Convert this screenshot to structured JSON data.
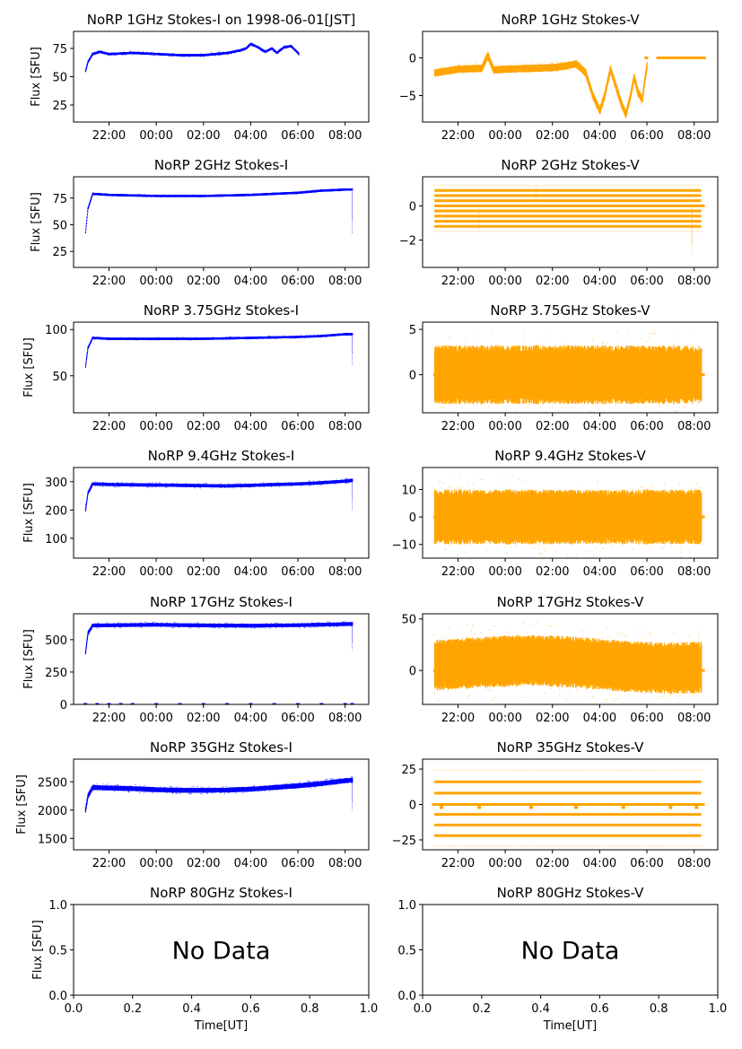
{
  "figure": {
    "title_prefix": "NoRP",
    "date_label": "on 1998-06-01[JST]",
    "time_axis_label": "Time[UT]",
    "flux_axis_label": "Flux [SFU]",
    "colors": {
      "stokes_i": "#0000ff",
      "stokes_v": "#ffa500"
    }
  },
  "chart_data": [
    {
      "type": "scatter",
      "panel": "1GHz-I",
      "title": "NoRP 1GHz Stokes-I on 1998-06-01[JST]",
      "ylabel": "Flux [SFU]",
      "xlabel": "",
      "x_range_hours": [
        20.5,
        33.0
      ],
      "ylim": [
        10,
        90
      ],
      "xticks": [
        "22:00",
        "00:00",
        "02:00",
        "04:00",
        "06:00",
        "08:00"
      ],
      "yticks": [
        {
          "v": 25,
          "label": "25"
        },
        {
          "v": 50,
          "label": "50"
        },
        {
          "v": 75,
          "label": "75"
        }
      ],
      "series": [
        {
          "name": "Stokes-I",
          "points": [
            [
              21.0,
              55
            ],
            [
              21.1,
              63
            ],
            [
              21.3,
              70
            ],
            [
              21.6,
              72
            ],
            [
              22,
              70
            ],
            [
              23,
              71
            ],
            [
              24,
              70
            ],
            [
              25,
              69
            ],
            [
              26,
              69
            ],
            [
              26.5,
              70
            ],
            [
              27,
              71
            ],
            [
              27.5,
              73
            ],
            [
              27.8,
              75
            ],
            [
              28,
              79
            ],
            [
              28.3,
              76
            ],
            [
              28.6,
              72
            ],
            [
              28.9,
              75
            ],
            [
              29.1,
              71
            ],
            [
              29.4,
              76
            ],
            [
              29.7,
              77
            ],
            [
              30.0,
              71
            ],
            [
              30.03,
              70
            ]
          ]
        }
      ],
      "spread": 2.0,
      "extras": []
    },
    {
      "type": "scatter",
      "panel": "1GHz-V",
      "title": "NoRP 1GHz Stokes-V",
      "ylabel": "",
      "xlabel": "",
      "x_range_hours": [
        20.5,
        33.0
      ],
      "ylim": [
        -8.5,
        3.5
      ],
      "xticks": [
        "22:00",
        "00:00",
        "02:00",
        "04:00",
        "06:00",
        "08:00"
      ],
      "yticks": [
        {
          "v": -5,
          "label": "−5"
        },
        {
          "v": 0,
          "label": "0"
        }
      ],
      "series": [
        {
          "name": "Stokes-V",
          "points": [
            [
              21.0,
              -2.0
            ],
            [
              22,
              -1.5
            ],
            [
              23,
              -1.4
            ],
            [
              23.25,
              0.3
            ],
            [
              23.5,
              -1.6
            ],
            [
              24,
              -1.5
            ],
            [
              25,
              -1.4
            ],
            [
              26,
              -1.3
            ],
            [
              26.5,
              -1.1
            ],
            [
              27,
              -0.8
            ],
            [
              27.4,
              -2.0
            ],
            [
              27.7,
              -5.0
            ],
            [
              28.0,
              -7.0
            ],
            [
              28.2,
              -5.0
            ],
            [
              28.45,
              -1.5
            ],
            [
              28.6,
              -3.0
            ],
            [
              28.9,
              -6.0
            ],
            [
              29.1,
              -7.5
            ],
            [
              29.3,
              -5.0
            ],
            [
              29.45,
              -2.5
            ],
            [
              29.6,
              -4.5
            ],
            [
              29.8,
              -5.5
            ],
            [
              29.9,
              -3.0
            ],
            [
              30.0,
              -1.0
            ]
          ]
        },
        {
          "name": "Stokes-V zero",
          "points": [
            [
              30.4,
              0
            ],
            [
              32.5,
              0
            ]
          ]
        }
      ],
      "spread": 1.0,
      "extras": []
    },
    {
      "type": "scatter",
      "panel": "2GHz-I",
      "title": "NoRP 2GHz Stokes-I",
      "ylabel": "Flux [SFU]",
      "xlabel": "",
      "x_range_hours": [
        20.5,
        33.0
      ],
      "ylim": [
        10,
        95
      ],
      "xticks": [
        "22:00",
        "00:00",
        "02:00",
        "04:00",
        "06:00",
        "08:00"
      ],
      "yticks": [
        {
          "v": 25,
          "label": "25"
        },
        {
          "v": 50,
          "label": "50"
        },
        {
          "v": 75,
          "label": "75"
        }
      ],
      "series": [
        {
          "name": "Stokes-I",
          "points": [
            [
              21.0,
              43
            ],
            [
              21.1,
              65
            ],
            [
              21.3,
              79
            ],
            [
              22,
              78
            ],
            [
              24,
              77
            ],
            [
              26,
              77
            ],
            [
              28,
              78
            ],
            [
              29,
              79
            ],
            [
              30,
              80
            ],
            [
              31,
              82
            ],
            [
              32,
              83
            ],
            [
              32.3,
              83
            ]
          ]
        }
      ],
      "spread": 1.5,
      "extras": [
        [
          32.3,
          42
        ],
        [
          32.3,
          55
        ]
      ]
    },
    {
      "type": "scatter",
      "panel": "2GHz-V",
      "title": "NoRP 2GHz Stokes-V",
      "ylabel": "",
      "xlabel": "",
      "x_range_hours": [
        20.5,
        33.0
      ],
      "ylim": [
        -3.6,
        1.7
      ],
      "xticks": [
        "22:00",
        "00:00",
        "02:00",
        "04:00",
        "06:00",
        "08:00"
      ],
      "yticks": [
        {
          "v": -2,
          "label": "−2"
        },
        {
          "v": 0,
          "label": "0"
        }
      ],
      "series": [
        {
          "name": "Stokes-V",
          "points": [
            [
              21.0,
              0
            ],
            [
              32.3,
              0
            ]
          ]
        }
      ],
      "bands": [
        -1.2,
        -0.9,
        -0.6,
        -0.3,
        0,
        0.3,
        0.6,
        0.9
      ],
      "spread": 0,
      "extras": [
        [
          31.9,
          -2.8
        ],
        [
          31.9,
          -2.2
        ],
        [
          22.9,
          -1.5
        ],
        [
          25.3,
          1.2
        ]
      ]
    },
    {
      "type": "scatter",
      "panel": "3.75GHz-I",
      "title": "NoRP 3.75GHz Stokes-I",
      "ylabel": "Flux [SFU]",
      "xlabel": "",
      "x_range_hours": [
        20.5,
        33.0
      ],
      "ylim": [
        10,
        108
      ],
      "xticks": [
        "22:00",
        "00:00",
        "02:00",
        "04:00",
        "06:00",
        "08:00"
      ],
      "yticks": [
        {
          "v": 50,
          "label": "50"
        },
        {
          "v": 100,
          "label": "100"
        }
      ],
      "series": [
        {
          "name": "Stokes-I",
          "points": [
            [
              21.0,
              60
            ],
            [
              21.1,
              80
            ],
            [
              21.3,
              91
            ],
            [
              22,
              90
            ],
            [
              24,
              90
            ],
            [
              26,
              90
            ],
            [
              28,
              91
            ],
            [
              30,
              92
            ],
            [
              31,
              93
            ],
            [
              32,
              95
            ],
            [
              32.3,
              95
            ]
          ]
        }
      ],
      "spread": 2.0,
      "extras": [
        [
          32.3,
          62
        ],
        [
          32.3,
          75
        ]
      ]
    },
    {
      "type": "scatter",
      "panel": "3.75GHz-V",
      "title": "NoRP 3.75GHz Stokes-V",
      "ylabel": "",
      "xlabel": "",
      "x_range_hours": [
        20.5,
        33.0
      ],
      "ylim": [
        -4.2,
        5.8
      ],
      "xticks": [
        "22:00",
        "00:00",
        "02:00",
        "04:00",
        "06:00",
        "08:00"
      ],
      "yticks": [
        {
          "v": 0,
          "label": "0"
        },
        {
          "v": 5,
          "label": "5"
        }
      ],
      "series": [
        {
          "name": "Stokes-V",
          "points": [
            [
              21.0,
              0
            ],
            [
              32.3,
              0
            ]
          ]
        }
      ],
      "spread": 6.5,
      "extras": []
    },
    {
      "type": "scatter",
      "panel": "9.4GHz-I",
      "title": "NoRP 9.4GHz Stokes-I",
      "ylabel": "Flux [SFU]",
      "xlabel": "",
      "x_range_hours": [
        20.5,
        33.0
      ],
      "ylim": [
        30,
        350
      ],
      "xticks": [
        "22:00",
        "00:00",
        "02:00",
        "04:00",
        "06:00",
        "08:00"
      ],
      "yticks": [
        {
          "v": 100,
          "label": "100"
        },
        {
          "v": 200,
          "label": "200"
        },
        {
          "v": 300,
          "label": "300"
        }
      ],
      "series": [
        {
          "name": "Stokes-I",
          "points": [
            [
              21.0,
              200
            ],
            [
              21.1,
              260
            ],
            [
              21.3,
              292
            ],
            [
              22,
              290
            ],
            [
              24,
              288
            ],
            [
              26,
              286
            ],
            [
              27,
              285
            ],
            [
              28,
              287
            ],
            [
              29,
              290
            ],
            [
              30,
              292
            ],
            [
              31,
              296
            ],
            [
              32,
              302
            ],
            [
              32.3,
              305
            ]
          ]
        }
      ],
      "spread": 12,
      "extras": [
        [
          32.3,
          200
        ],
        [
          32.3,
          240
        ]
      ]
    },
    {
      "type": "scatter",
      "panel": "9.4GHz-V",
      "title": "NoRP 9.4GHz Stokes-V",
      "ylabel": "",
      "xlabel": "",
      "x_range_hours": [
        20.5,
        33.0
      ],
      "ylim": [
        -15,
        18
      ],
      "xticks": [
        "22:00",
        "00:00",
        "02:00",
        "04:00",
        "06:00",
        "08:00"
      ],
      "yticks": [
        {
          "v": -10,
          "label": "−10"
        },
        {
          "v": 0,
          "label": "0"
        },
        {
          "v": 10,
          "label": "10"
        }
      ],
      "series": [
        {
          "name": "Stokes-V",
          "points": [
            [
              21.0,
              0
            ],
            [
              32.3,
              0
            ]
          ]
        }
      ],
      "spread": 20,
      "extras": []
    },
    {
      "type": "scatter",
      "panel": "17GHz-I",
      "title": "NoRP 17GHz Stokes-I",
      "ylabel": "Flux [SFU]",
      "xlabel": "",
      "x_range_hours": [
        20.5,
        33.0
      ],
      "ylim": [
        0,
        700
      ],
      "xticks": [
        "22:00",
        "00:00",
        "02:00",
        "04:00",
        "06:00",
        "08:00"
      ],
      "yticks": [
        {
          "v": 0,
          "label": "0"
        },
        {
          "v": 250,
          "label": "250"
        },
        {
          "v": 500,
          "label": "500"
        }
      ],
      "series": [
        {
          "name": "Stokes-I",
          "points": [
            [
              21.0,
              400
            ],
            [
              21.1,
              550
            ],
            [
              21.3,
              610
            ],
            [
              24,
              615
            ],
            [
              26,
              610
            ],
            [
              28,
              608
            ],
            [
              30,
              612
            ],
            [
              32,
              620
            ],
            [
              32.3,
              622
            ]
          ]
        }
      ],
      "spread": 30,
      "extras": [
        [
          32.3,
          420
        ],
        [
          32.3,
          480
        ]
      ],
      "zeros": [
        21.0,
        21.5,
        22.0,
        22.5,
        23.0,
        24.0,
        25.0,
        26.0,
        27.0,
        28.0,
        29.0,
        30.0,
        31.0,
        32.0,
        32.3
      ]
    },
    {
      "type": "scatter",
      "panel": "17GHz-V",
      "title": "NoRP 17GHz Stokes-V",
      "ylabel": "",
      "xlabel": "",
      "x_range_hours": [
        20.5,
        33.0
      ],
      "ylim": [
        -33,
        55
      ],
      "xticks": [
        "22:00",
        "00:00",
        "02:00",
        "04:00",
        "06:00",
        "08:00"
      ],
      "yticks": [
        {
          "v": 0,
          "label": "0"
        },
        {
          "v": 50,
          "label": "50"
        }
      ],
      "series": [
        {
          "name": "Stokes-V",
          "points": [
            [
              21.0,
              5
            ],
            [
              23,
              8
            ],
            [
              25,
              10
            ],
            [
              27,
              8
            ],
            [
              29,
              4
            ],
            [
              31,
              2
            ],
            [
              32.3,
              3
            ]
          ]
        }
      ],
      "spread": 50,
      "extras": []
    },
    {
      "type": "scatter",
      "panel": "35GHz-I",
      "title": "NoRP 35GHz Stokes-I",
      "ylabel": "Flux [SFU]",
      "xlabel": "",
      "x_range_hours": [
        20.5,
        33.0
      ],
      "ylim": [
        1300,
        2900
      ],
      "xticks": [
        "22:00",
        "00:00",
        "02:00",
        "04:00",
        "06:00",
        "08:00"
      ],
      "yticks": [
        {
          "v": 1500,
          "label": "1500"
        },
        {
          "v": 2000,
          "label": "2000"
        },
        {
          "v": 2500,
          "label": "2500"
        }
      ],
      "series": [
        {
          "name": "Stokes-I",
          "points": [
            [
              21.0,
              2000
            ],
            [
              21.1,
              2250
            ],
            [
              21.3,
              2400
            ],
            [
              22,
              2390
            ],
            [
              23,
              2380
            ],
            [
              24,
              2360
            ],
            [
              25,
              2350
            ],
            [
              26,
              2350
            ],
            [
              27,
              2355
            ],
            [
              28,
              2370
            ],
            [
              29,
              2400
            ],
            [
              30,
              2430
            ],
            [
              31,
              2470
            ],
            [
              32,
              2520
            ],
            [
              32.3,
              2530
            ]
          ]
        }
      ],
      "spread": 90,
      "extras": [
        [
          32.3,
          2000
        ],
        [
          32.3,
          2150
        ]
      ]
    },
    {
      "type": "scatter",
      "panel": "35GHz-V",
      "title": "NoRP 35GHz Stokes-V",
      "ylabel": "",
      "xlabel": "",
      "x_range_hours": [
        20.5,
        33.0
      ],
      "ylim": [
        -32,
        32
      ],
      "xticks": [
        "22:00",
        "00:00",
        "02:00",
        "04:00",
        "06:00",
        "08:00"
      ],
      "yticks": [
        {
          "v": -25,
          "label": "−25"
        },
        {
          "v": 0,
          "label": "0"
        },
        {
          "v": 25,
          "label": "25"
        }
      ],
      "series": [
        {
          "name": "Stokes-V",
          "points": [
            [
              21.0,
              0
            ],
            [
              32.3,
              0
            ]
          ]
        }
      ],
      "bands": [
        -22,
        -14.5,
        -7,
        0,
        8,
        16
      ],
      "dotted_bands": [
        -29.5,
        24
      ],
      "spread": 0,
      "extras": []
    },
    {
      "type": "scatter",
      "panel": "80GHz-I",
      "title": "NoRP 80GHz Stokes-I",
      "ylabel": "Flux [SFU]",
      "xlabel": "Time[UT]",
      "xlim": [
        0,
        1
      ],
      "ylim": [
        0,
        1
      ],
      "xticks_num": [
        "0.0",
        "0.2",
        "0.4",
        "0.6",
        "0.8",
        "1.0"
      ],
      "yticks_num": [
        "0.0",
        "0.5",
        "1.0"
      ],
      "no_data": "No Data"
    },
    {
      "type": "scatter",
      "panel": "80GHz-V",
      "title": "NoRP 80GHz Stokes-V",
      "ylabel": "",
      "xlabel": "Time[UT]",
      "xlim": [
        0,
        1
      ],
      "ylim": [
        0,
        1
      ],
      "xticks_num": [
        "0.0",
        "0.2",
        "0.4",
        "0.6",
        "0.8",
        "1.0"
      ],
      "yticks_num": [
        "0.0",
        "0.5",
        "1.0"
      ],
      "no_data": "No Data"
    }
  ]
}
